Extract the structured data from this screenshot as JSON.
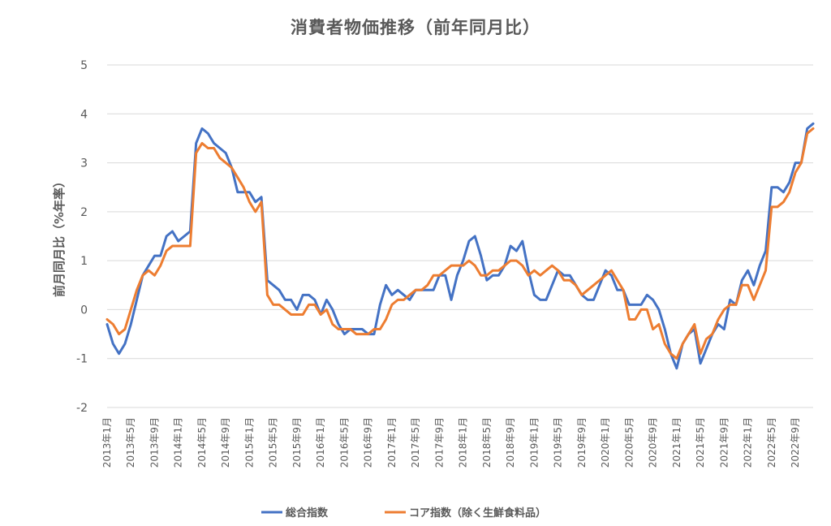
{
  "chart_data": {
    "type": "line",
    "title": "消費者物価推移（前年同月比）",
    "ylabel": "前月同月比（%年率）",
    "xlabel": "",
    "ylim": [
      -2,
      5
    ],
    "yticks": [
      "5",
      "4",
      "3",
      "2",
      "1",
      "0",
      "-1",
      "-2"
    ],
    "grid": true,
    "legend_position": "bottom",
    "x_tick_labels": [
      "2013年1月",
      "2013年5月",
      "2013年9月",
      "2014年1月",
      "2014年5月",
      "2014年9月",
      "2015年1月",
      "2015年5月",
      "2015年9月",
      "2016年1月",
      "2016年5月",
      "2016年9月",
      "2017年1月",
      "2017年5月",
      "2017年9月",
      "2018年1月",
      "2018年5月",
      "2018年9月",
      "2019年1月",
      "2019年5月",
      "2019年9月",
      "2020年1月",
      "2020年5月",
      "2020年9月",
      "2021年1月",
      "2021年5月",
      "2021年9月",
      "2022年1月",
      "2022年5月",
      "2022年9月"
    ],
    "series": [
      {
        "name": "総合指数",
        "color": "#4472C4",
        "values": [
          -0.3,
          -0.7,
          -0.9,
          -0.7,
          -0.3,
          0.2,
          0.7,
          0.9,
          1.1,
          1.1,
          1.5,
          1.6,
          1.4,
          1.5,
          1.6,
          3.4,
          3.7,
          3.6,
          3.4,
          3.3,
          3.2,
          2.9,
          2.4,
          2.4,
          2.4,
          2.2,
          2.3,
          0.6,
          0.5,
          0.4,
          0.2,
          0.2,
          0.0,
          0.3,
          0.3,
          0.2,
          -0.1,
          0.2,
          0.0,
          -0.3,
          -0.5,
          -0.4,
          -0.4,
          -0.4,
          -0.5,
          -0.5,
          0.1,
          0.5,
          0.3,
          0.4,
          0.3,
          0.2,
          0.4,
          0.4,
          0.4,
          0.4,
          0.7,
          0.7,
          0.2,
          0.7,
          1.0,
          1.4,
          1.5,
          1.1,
          0.6,
          0.7,
          0.7,
          0.9,
          1.3,
          1.2,
          1.4,
          0.8,
          0.3,
          0.2,
          0.2,
          0.5,
          0.8,
          0.7,
          0.7,
          0.5,
          0.3,
          0.2,
          0.2,
          0.5,
          0.8,
          0.7,
          0.4,
          0.4,
          0.1,
          0.1,
          0.1,
          0.3,
          0.2,
          0.0,
          -0.4,
          -0.9,
          -1.2,
          -0.7,
          -0.5,
          -0.4,
          -1.1,
          -0.8,
          -0.5,
          -0.3,
          -0.4,
          0.2,
          0.1,
          0.6,
          0.8,
          0.5,
          0.9,
          1.2,
          2.5,
          2.5,
          2.4,
          2.6,
          3.0,
          3.0,
          3.7,
          3.8
        ]
      },
      {
        "name": "コア指数（除く生鮮食料品）",
        "color": "#ED7D31",
        "values": [
          -0.2,
          -0.3,
          -0.5,
          -0.4,
          0.0,
          0.4,
          0.7,
          0.8,
          0.7,
          0.9,
          1.2,
          1.3,
          1.3,
          1.3,
          1.3,
          3.2,
          3.4,
          3.3,
          3.3,
          3.1,
          3.0,
          2.9,
          2.7,
          2.5,
          2.2,
          2.0,
          2.2,
          0.3,
          0.1,
          0.1,
          0.0,
          -0.1,
          -0.1,
          -0.1,
          0.1,
          0.1,
          -0.1,
          0.0,
          -0.3,
          -0.4,
          -0.4,
          -0.4,
          -0.5,
          -0.5,
          -0.5,
          -0.4,
          -0.4,
          -0.2,
          0.1,
          0.2,
          0.2,
          0.3,
          0.4,
          0.4,
          0.5,
          0.7,
          0.7,
          0.8,
          0.9,
          0.9,
          0.9,
          1.0,
          0.9,
          0.7,
          0.7,
          0.8,
          0.8,
          0.9,
          1.0,
          1.0,
          0.9,
          0.7,
          0.8,
          0.7,
          0.8,
          0.9,
          0.8,
          0.6,
          0.6,
          0.5,
          0.3,
          0.4,
          0.5,
          0.6,
          0.7,
          0.8,
          0.6,
          0.4,
          -0.2,
          -0.2,
          0.0,
          0.0,
          -0.4,
          -0.3,
          -0.7,
          -0.9,
          -1.0,
          -0.7,
          -0.5,
          -0.3,
          -0.9,
          -0.6,
          -0.5,
          -0.2,
          0.0,
          0.1,
          0.1,
          0.5,
          0.5,
          0.2,
          0.5,
          0.8,
          2.1,
          2.1,
          2.2,
          2.4,
          2.8,
          3.0,
          3.6,
          3.7
        ]
      }
    ]
  }
}
